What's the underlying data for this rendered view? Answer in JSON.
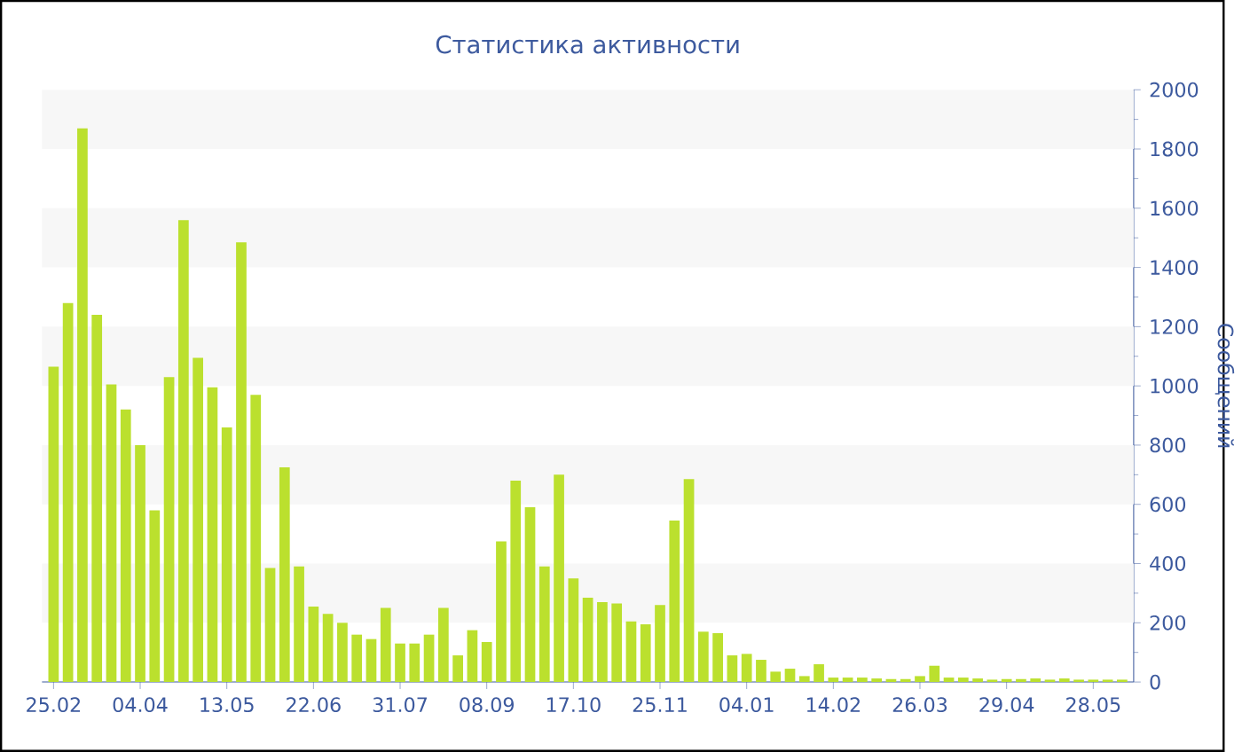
{
  "chart_data": {
    "type": "bar",
    "title": "Статистика активности",
    "ylabel": "Сообщений",
    "categories": [
      "25.02",
      null,
      null,
      null,
      null,
      null,
      "04.04",
      null,
      null,
      null,
      null,
      null,
      "13.05",
      null,
      null,
      null,
      null,
      null,
      "22.06",
      null,
      null,
      null,
      null,
      null,
      "31.07",
      null,
      null,
      null,
      null,
      null,
      "08.09",
      null,
      null,
      null,
      null,
      null,
      "17.10",
      null,
      null,
      null,
      null,
      null,
      "25.11",
      null,
      null,
      null,
      null,
      null,
      "04.01",
      null,
      null,
      null,
      null,
      null,
      "14.02",
      null,
      null,
      null,
      null,
      null,
      "26.03",
      null,
      null,
      null,
      null,
      null,
      "29.04",
      null,
      null,
      null,
      null,
      null,
      "28.05",
      null,
      null
    ],
    "values": [
      1065,
      1280,
      1870,
      1240,
      1005,
      920,
      800,
      580,
      1030,
      1560,
      1095,
      995,
      860,
      1485,
      970,
      385,
      725,
      390,
      255,
      230,
      200,
      160,
      145,
      250,
      130,
      130,
      160,
      250,
      90,
      175,
      135,
      475,
      680,
      590,
      390,
      700,
      350,
      285,
      270,
      265,
      205,
      195,
      260,
      545,
      685,
      170,
      165,
      90,
      95,
      75,
      35,
      45,
      20,
      60,
      15,
      15,
      15,
      12,
      10,
      10,
      20,
      55,
      15,
      15,
      12,
      8,
      10,
      10,
      12,
      8,
      12,
      8,
      8,
      8,
      8
    ],
    "color": "#bbe02e",
    "ylim": [
      0,
      2000
    ],
    "yticks": [
      0,
      200,
      400,
      600,
      800,
      1000,
      1200,
      1400,
      1600,
      1800,
      2000
    ],
    "bands": [
      {
        "axis": "y",
        "from": 200,
        "to": 400,
        "color": "#f7f7f7"
      },
      {
        "axis": "y",
        "from": 600,
        "to": 800,
        "color": "#f7f7f7"
      },
      {
        "axis": "y",
        "from": 1000,
        "to": 1200,
        "color": "#f7f7f7"
      },
      {
        "axis": "y",
        "from": 1400,
        "to": 1600,
        "color": "#f7f7f7"
      },
      {
        "axis": "y",
        "from": 1800,
        "to": 2000,
        "color": "#f7f7f7"
      }
    ]
  }
}
